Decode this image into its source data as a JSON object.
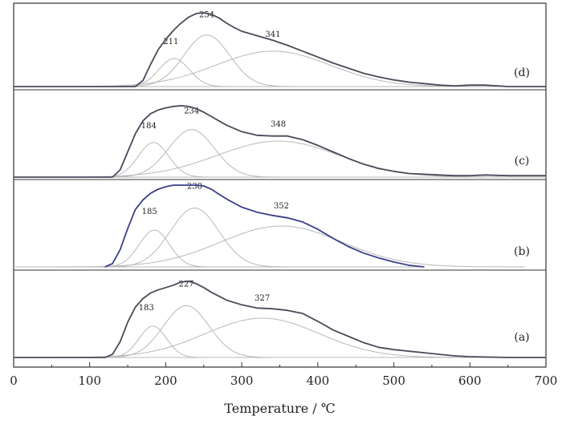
{
  "chart_data": {
    "type": "line",
    "xlabel": "Temperature / ℃",
    "xlim": [
      0,
      700
    ],
    "x_ticks": [
      0,
      100,
      200,
      300,
      400,
      500,
      600,
      700
    ],
    "y_ticks_labeled": false,
    "panels": [
      {
        "label": "(a)",
        "baseline_end_x": 700,
        "total": {
          "x": [
            0,
            120,
            130,
            140,
            150,
            160,
            170,
            180,
            190,
            200,
            210,
            220,
            230,
            240,
            250,
            260,
            270,
            280,
            300,
            320,
            340,
            360,
            380,
            400,
            420,
            440,
            460,
            480,
            500,
            520,
            540,
            560,
            580,
            600,
            650,
            700
          ],
          "y": [
            0,
            0,
            0.04,
            0.2,
            0.45,
            0.64,
            0.75,
            0.82,
            0.86,
            0.89,
            0.92,
            0.96,
            0.97,
            0.94,
            0.89,
            0.83,
            0.78,
            0.73,
            0.67,
            0.63,
            0.62,
            0.6,
            0.56,
            0.46,
            0.35,
            0.27,
            0.19,
            0.13,
            0.1,
            0.08,
            0.06,
            0.04,
            0.02,
            0.01,
            0,
            0
          ]
        },
        "components": [
          {
            "center": 183,
            "height": 0.4,
            "width": 18
          },
          {
            "center": 227,
            "height": 0.66,
            "width": 30
          },
          {
            "center": 327,
            "height": 0.5,
            "width": 75
          }
        ],
        "peak_labels": [
          "183",
          "227",
          "327"
        ]
      },
      {
        "label": "(b)",
        "baseline_end_x": 540,
        "total": {
          "x": [
            120,
            130,
            140,
            150,
            160,
            170,
            180,
            190,
            200,
            210,
            220,
            230,
            240,
            250,
            260,
            270,
            280,
            300,
            320,
            340,
            360,
            380,
            400,
            420,
            440,
            460,
            480,
            500,
            520,
            540
          ],
          "y": [
            0,
            0.04,
            0.21,
            0.47,
            0.7,
            0.82,
            0.9,
            0.95,
            0.98,
            1.0,
            1.0,
            1.0,
            1.0,
            0.99,
            0.95,
            0.89,
            0.83,
            0.73,
            0.67,
            0.63,
            0.6,
            0.55,
            0.46,
            0.35,
            0.25,
            0.17,
            0.11,
            0.06,
            0.02,
            0
          ]
        },
        "components": [
          {
            "center": 185,
            "height": 0.45,
            "width": 20
          },
          {
            "center": 238,
            "height": 0.72,
            "width": 32
          },
          {
            "center": 352,
            "height": 0.5,
            "width": 80
          }
        ],
        "peak_labels": [
          "185",
          "238",
          "352"
        ]
      },
      {
        "label": "(c)",
        "baseline_end_x": 700,
        "total": {
          "x": [
            0,
            130,
            140,
            150,
            160,
            170,
            180,
            190,
            200,
            210,
            220,
            230,
            240,
            250,
            260,
            270,
            280,
            300,
            320,
            340,
            360,
            380,
            400,
            420,
            440,
            460,
            480,
            500,
            520,
            540,
            560,
            580,
            600,
            620,
            650,
            700
          ],
          "y": [
            0,
            0,
            0.1,
            0.35,
            0.6,
            0.78,
            0.88,
            0.93,
            0.96,
            0.98,
            0.99,
            0.98,
            0.95,
            0.9,
            0.84,
            0.78,
            0.72,
            0.63,
            0.58,
            0.57,
            0.57,
            0.52,
            0.44,
            0.35,
            0.26,
            0.18,
            0.12,
            0.08,
            0.05,
            0.04,
            0.03,
            0.02,
            0.02,
            0.03,
            0.02,
            0.02
          ]
        },
        "components": [
          {
            "center": 184,
            "height": 0.48,
            "width": 20
          },
          {
            "center": 234,
            "height": 0.66,
            "width": 30
          },
          {
            "center": 348,
            "height": 0.5,
            "width": 80
          }
        ],
        "peak_labels": [
          "184",
          "234",
          "348"
        ]
      },
      {
        "label": "(d)",
        "baseline_end_x": 700,
        "total": {
          "x": [
            0,
            160,
            170,
            180,
            190,
            200,
            210,
            220,
            230,
            240,
            250,
            260,
            270,
            280,
            290,
            300,
            320,
            340,
            360,
            380,
            400,
            420,
            440,
            460,
            480,
            500,
            520,
            540,
            560,
            580,
            600,
            620,
            650,
            700
          ],
          "y": [
            0,
            0,
            0.08,
            0.3,
            0.5,
            0.64,
            0.76,
            0.86,
            0.94,
            0.99,
            1.0,
            0.98,
            0.93,
            0.86,
            0.8,
            0.75,
            0.69,
            0.63,
            0.56,
            0.48,
            0.4,
            0.32,
            0.25,
            0.18,
            0.13,
            0.09,
            0.06,
            0.04,
            0.02,
            0.01,
            0.02,
            0.02,
            0,
            0
          ]
        },
        "components": [
          {
            "center": 211,
            "height": 0.38,
            "width": 20
          },
          {
            "center": 254,
            "height": 0.7,
            "width": 30
          },
          {
            "center": 341,
            "height": 0.48,
            "width": 75
          }
        ],
        "peak_labels": [
          "211",
          "254",
          "341"
        ]
      }
    ]
  },
  "colors": {
    "total_line": "#4a4a5a",
    "total_line_b": "#3a3f88",
    "component_line": "#b8b8b8",
    "axis": "#333333",
    "text": "#222222"
  }
}
